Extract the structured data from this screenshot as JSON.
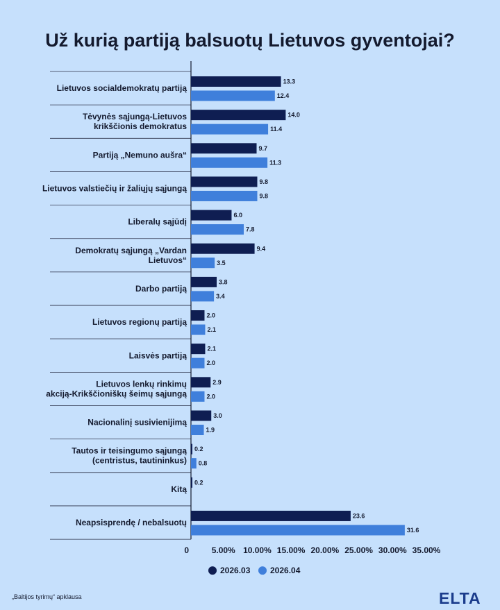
{
  "chart_data": {
    "type": "bar",
    "orientation": "horizontal",
    "title": "Už kurią partiją balsuotų Lietuvos gyventojai?",
    "categories": [
      "Lietuvos socialdemokratų partiją",
      "Tėvynės sąjungą-Lietuvos krikščionis demokratus",
      "Partiją „Nemuno aušra“",
      "Lietuvos valstiečių ir žaliųjų sąjungą",
      "Liberalų sąjūdį",
      "Demokratų sąjungą „Vardan Lietuvos“",
      "Darbo partiją",
      "Lietuvos regionų partiją",
      "Laisvės partiją",
      "Lietuvos lenkų rinkimų akciją-Krikščioniškų šeimų sąjungą",
      "Nacionalinį susivienijimą",
      "Tautos ir teisingumo sąjungą (centristus, tautininkus)",
      "Kitą",
      "Neapsisprendę / nebalsuotų"
    ],
    "category_lines": [
      [
        "Lietuvos socialdemokratų partiją"
      ],
      [
        "Tėvynės sąjungą-Lietuvos",
        "krikščionis demokratus"
      ],
      [
        "Partiją „Nemuno aušra“"
      ],
      [
        "Lietuvos valstiečių ir žaliųjų sąjungą"
      ],
      [
        "Liberalų sąjūdį"
      ],
      [
        "Demokratų sąjungą „Vardan",
        "Lietuvos“"
      ],
      [
        "Darbo partiją"
      ],
      [
        "Lietuvos regionų partiją"
      ],
      [
        "Laisvės partiją"
      ],
      [
        "Lietuvos lenkų rinkimų",
        "akciją-Krikščioniškų šeimų sąjungą"
      ],
      [
        "Nacionalinį susivienijimą"
      ],
      [
        "Tautos ir teisingumo sąjungą",
        "(centristus, tautininkus)"
      ],
      [
        "Kitą"
      ],
      [
        "Neapsisprendę / nebalsuotų"
      ]
    ],
    "series": [
      {
        "name": "2026.03",
        "color": "#0f1e52",
        "values": [
          13.3,
          14.0,
          9.7,
          9.8,
          6.0,
          9.4,
          3.8,
          2.0,
          2.1,
          2.9,
          3.0,
          0.2,
          0.2,
          23.6
        ],
        "labels": [
          "13.3",
          "14.0",
          "9.7",
          "9.8",
          "6.0",
          "9.4",
          "3.8",
          "2.0",
          "2.1",
          "2.9",
          "3.0",
          "0.2",
          "0.2",
          "23.6"
        ]
      },
      {
        "name": "2026.04",
        "color": "#3f7fdb",
        "values": [
          12.4,
          11.4,
          11.3,
          9.8,
          7.8,
          3.5,
          3.4,
          2.1,
          2.0,
          2.0,
          1.9,
          0.8,
          null,
          31.6
        ],
        "labels": [
          "12.4",
          "11.4",
          "11.3",
          "9.8",
          "7.8",
          "3.5",
          "3.4",
          "2.1",
          "2.0",
          "2.0",
          "1.9",
          "0.8",
          "",
          "31.6"
        ]
      }
    ],
    "xlim": [
      0,
      35
    ],
    "xticks": [
      0,
      5,
      10,
      15,
      20,
      25,
      30,
      35
    ],
    "xtick_labels": [
      "0",
      "5.00%",
      "10.00%",
      "15.00%",
      "20.00%",
      "25.00%",
      "30.00%",
      "35.00%"
    ],
    "legend_position": "bottom-center",
    "grid": false
  },
  "footer": {
    "source": "„Baltijos tyrimų“ apklausa",
    "logo": "ELTA"
  },
  "colors": {
    "background": "#c6e0fc",
    "text": "#141a2e",
    "logo": "#1b3c8c"
  }
}
